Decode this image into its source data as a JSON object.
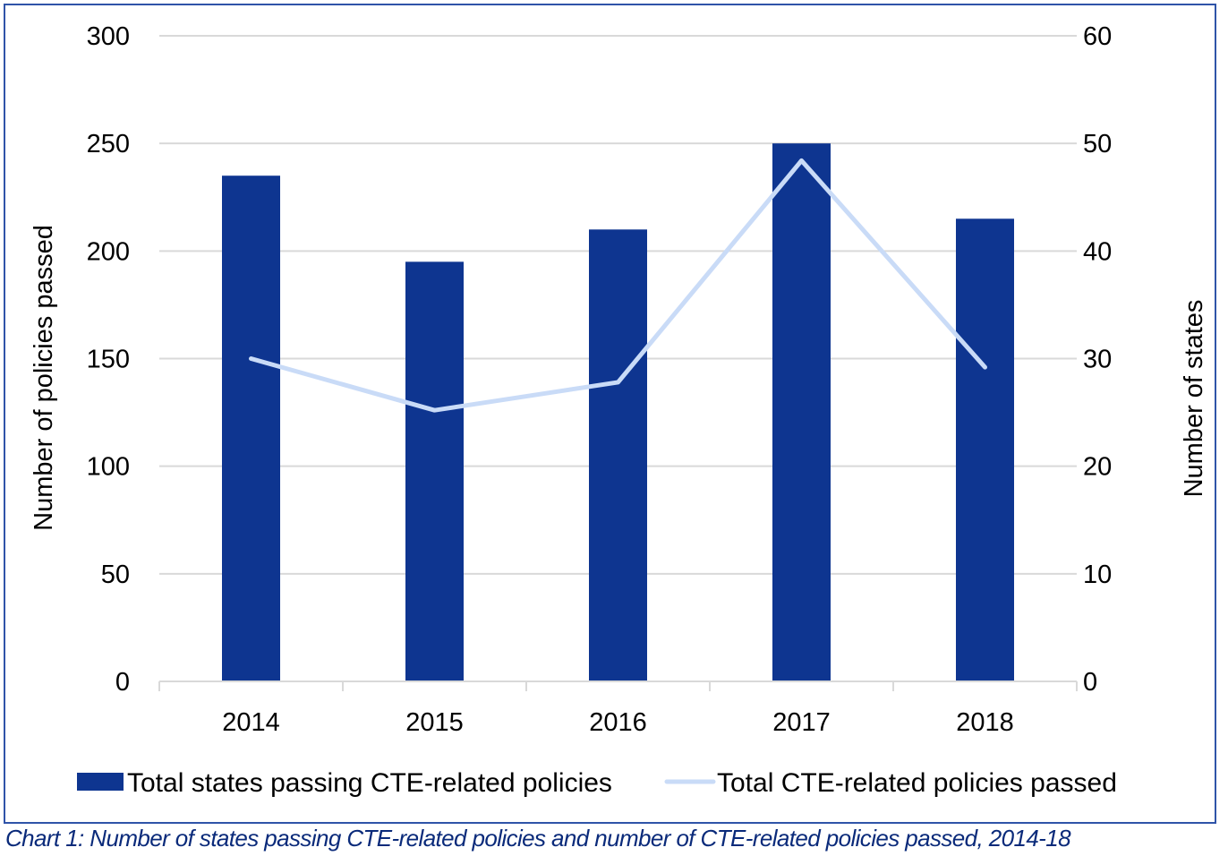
{
  "chart_data": {
    "type": "bar",
    "title": "",
    "caption": "Chart 1: Number of states passing CTE-related policies and number of CTE-related policies passed, 2014-18",
    "categories": [
      "2014",
      "2015",
      "2016",
      "2017",
      "2018"
    ],
    "ylabel": "Number of policies passed",
    "y2label": "Number of states",
    "ylim": [
      0,
      300
    ],
    "y2lim": [
      0,
      60
    ],
    "yticks": [
      "0",
      "50",
      "100",
      "150",
      "200",
      "250",
      "300"
    ],
    "y2ticks": [
      "0",
      "10",
      "20",
      "30",
      "40",
      "50",
      "60"
    ],
    "grid": true,
    "legend_position": "bottom",
    "series": [
      {
        "name": "Total states passing CTE-related policies",
        "type": "bar",
        "axis": "left",
        "color": "#0e3590",
        "values": [
          235,
          195,
          210,
          250,
          215
        ]
      },
      {
        "name": "Total CTE-related policies passed",
        "type": "line",
        "axis": "left",
        "color": "#c9dbf7",
        "values": [
          150,
          126,
          139,
          242,
          146
        ]
      }
    ]
  },
  "colors": {
    "frame": "#2f54a8",
    "grid": "#d9d9d9",
    "caption": "#0a2a7a"
  }
}
